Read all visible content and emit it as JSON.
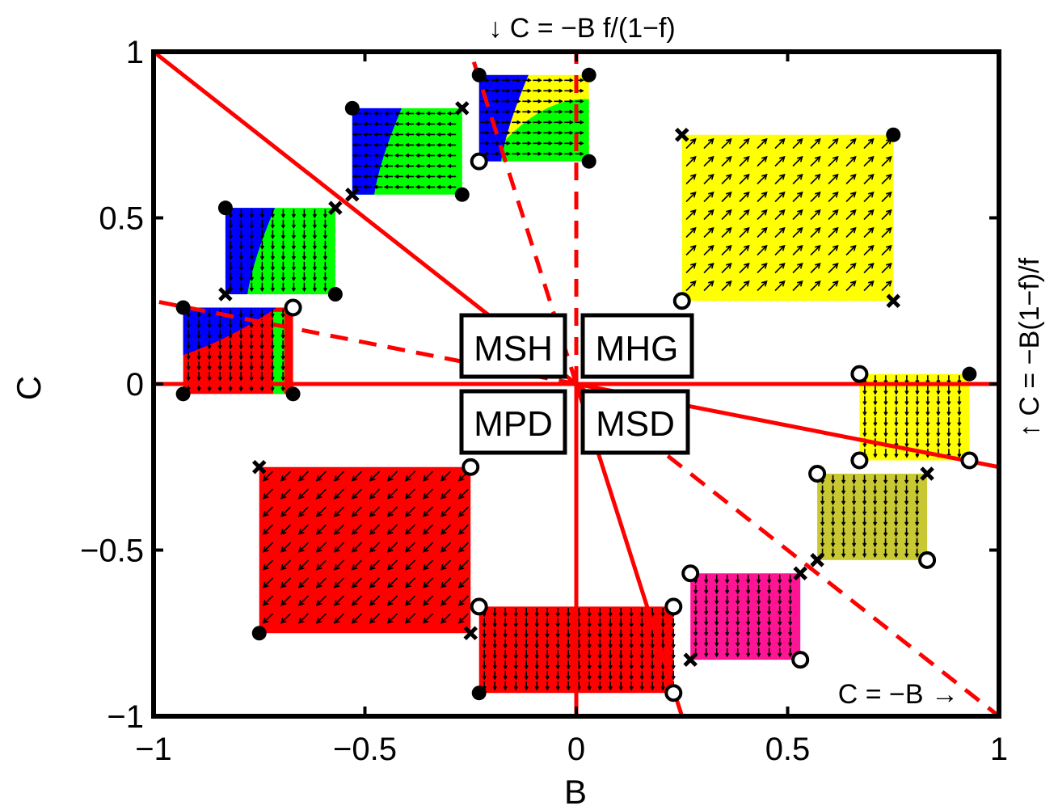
{
  "chart_data": {
    "type": "scatter",
    "xlabel": "B",
    "ylabel": "C",
    "xlim": [
      -1,
      1
    ],
    "ylim": [
      -1,
      1
    ],
    "xticks": [
      -1,
      -0.5,
      0,
      0.5,
      1
    ],
    "yticks": [
      -1,
      -0.5,
      0,
      0.5,
      1
    ],
    "xtick_labels": [
      "−1",
      "−0.5",
      "0",
      "0.5",
      "1"
    ],
    "ytick_labels": [
      "−1",
      "−0.5",
      "0",
      "0.5",
      "1"
    ],
    "grid": false,
    "region_labels": [
      "MSH",
      "MHG",
      "MPD",
      "MSD"
    ],
    "annotations": {
      "top": "↓ C = −B f/(1−f)",
      "right": "↑ C = −B(1−f)/f",
      "bottom_right": "C = −B →"
    },
    "lines": [
      {
        "style": "solid",
        "color": "#ff0000",
        "from": [
          -1,
          1
        ],
        "to": [
          0,
          0
        ]
      },
      {
        "style": "solid",
        "color": "#ff0000",
        "from": [
          -1,
          0
        ],
        "to": [
          1,
          0
        ]
      },
      {
        "style": "solid",
        "color": "#ff0000",
        "from": [
          0,
          -1
        ],
        "to": [
          0,
          0
        ]
      },
      {
        "style": "solid",
        "color": "#ff0000",
        "from": [
          0,
          0
        ],
        "to": [
          1,
          -0.25
        ]
      },
      {
        "style": "solid",
        "color": "#ff0000",
        "from": [
          0,
          0
        ],
        "to": [
          0.25,
          -1
        ]
      },
      {
        "style": "dashed",
        "color": "#ff0000",
        "from": [
          0,
          0
        ],
        "to": [
          1,
          -1
        ]
      },
      {
        "style": "dashed",
        "color": "#ff0000",
        "from": [
          0,
          0
        ],
        "to": [
          0,
          1
        ]
      },
      {
        "style": "dashed",
        "color": "#ff0000",
        "from": [
          0,
          0
        ],
        "to": [
          -1,
          0
        ]
      },
      {
        "style": "dashed",
        "color": "#ff0000",
        "from": [
          0,
          0
        ],
        "to": [
          -1,
          0.25
        ]
      },
      {
        "style": "dashed",
        "color": "#ff0000",
        "from": [
          0,
          0
        ],
        "to": [
          -0.25,
          1
        ]
      }
    ],
    "regions": [
      {
        "color": "#ffff00",
        "b": [
          0.25,
          0.75
        ],
        "c": [
          0.25,
          0.75
        ],
        "arrow": "ne",
        "markers": {
          "tl": "x",
          "tr": "dot",
          "bl": "circle",
          "br": "x"
        }
      },
      {
        "color": "#ff0000",
        "b": [
          -0.75,
          -0.25
        ],
        "c": [
          -0.75,
          -0.25
        ],
        "arrow": "sw",
        "markers": {
          "tl": "x",
          "tr": "circle",
          "bl": "dot",
          "br": "x"
        }
      },
      {
        "color": "#ff0000",
        "b": [
          -0.23,
          0.23
        ],
        "c": [
          -0.93,
          -0.67
        ],
        "arrow": "s",
        "markers": {
          "tl": "circle",
          "tr": "circle",
          "bl": "dot",
          "br": "circle"
        }
      },
      {
        "color": "#ff1493",
        "b": [
          0.27,
          0.53
        ],
        "c": [
          -0.83,
          -0.57
        ],
        "arrow": "s",
        "markers": {
          "tl": "circle",
          "tr": "x",
          "bl": "x",
          "br": "circle"
        }
      },
      {
        "color": "#c8c832",
        "b": [
          0.57,
          0.83
        ],
        "c": [
          -0.53,
          -0.27
        ],
        "arrow": "s",
        "markers": {
          "tl": "circle",
          "tr": "x",
          "bl": "x",
          "br": "circle"
        }
      },
      {
        "color": "#ffff00",
        "b": [
          0.67,
          0.93
        ],
        "c": [
          -0.23,
          0.03
        ],
        "arrow": "s",
        "markers": {
          "tl": "circle",
          "tr": "dot",
          "bl": "circle",
          "br": "circle"
        }
      },
      {
        "color": "#ffff00",
        "b": [
          -0.23,
          0.03
        ],
        "c": [
          0.67,
          0.93
        ],
        "arrow": "e",
        "split": {
          "lower_color": "#00ff00",
          "left_color": "#0000ff"
        },
        "markers": {
          "tl": "dot",
          "tr": "dot",
          "bl": "circle",
          "br": "dot"
        }
      },
      {
        "color": "#00ff00",
        "b": [
          -0.53,
          -0.27
        ],
        "c": [
          0.57,
          0.83
        ],
        "arrow": "w",
        "split": {
          "left_color": "#0000ff"
        },
        "markers": {
          "tl": "dot",
          "tr": "x",
          "bl": "x",
          "br": "dot"
        }
      },
      {
        "color": "#00ff00",
        "b": [
          -0.83,
          -0.57
        ],
        "c": [
          0.27,
          0.53
        ],
        "arrow": "s",
        "split": {
          "left_color": "#0000ff"
        },
        "markers": {
          "tl": "dot",
          "tr": "x",
          "bl": "x",
          "br": "dot"
        }
      },
      {
        "color": "#ff0000",
        "b": [
          -0.93,
          -0.67
        ],
        "c": [
          -0.03,
          0.23
        ],
        "arrow": "s",
        "split": {
          "upper_color": "#0000ff",
          "right_color": "#00ff00"
        },
        "markers": {
          "tl": "dot",
          "tr": "circle",
          "bl": "dot",
          "br": "dot"
        }
      }
    ]
  }
}
